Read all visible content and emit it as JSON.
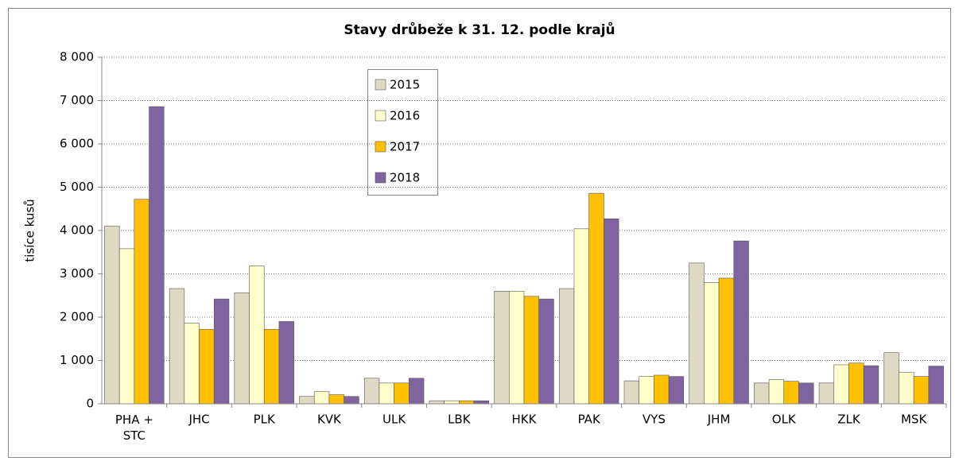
{
  "chart_data": {
    "type": "bar",
    "title": "Stavy drůbeže k 31. 12. podle krajů",
    "y_label": "tisíce kusů",
    "categories": [
      "PHA + STC",
      "JHC",
      "PLK",
      "KVK",
      "ULK",
      "LBK",
      "HKK",
      "PAK",
      "VYS",
      "JHM",
      "OLK",
      "ZLK",
      "MSK"
    ],
    "series": [
      {
        "name": "2015",
        "color": "#ddd9c3",
        "values": [
          4100,
          2660,
          2560,
          170,
          590,
          70,
          2600,
          2660,
          530,
          3250,
          480,
          480,
          1180
        ]
      },
      {
        "name": "2016",
        "color": "#ffffcc",
        "values": [
          3580,
          1860,
          3180,
          280,
          480,
          70,
          2600,
          4040,
          630,
          2800,
          560,
          900,
          730
        ]
      },
      {
        "name": "2017",
        "color": "#ffc000",
        "values": [
          4720,
          1720,
          1720,
          210,
          480,
          70,
          2480,
          4860,
          660,
          2900,
          520,
          940,
          630
        ]
      },
      {
        "name": "2018",
        "color": "#8064a2",
        "values": [
          6860,
          2420,
          1900,
          170,
          590,
          70,
          2420,
          4270,
          630,
          3760,
          480,
          880,
          870
        ]
      }
    ],
    "ylim": [
      0,
      8000
    ],
    "yticks": [
      0,
      {
        "value": 1000,
        "label": "1 000"
      },
      {
        "value": 2000,
        "label": "2 000"
      },
      {
        "value": 3000,
        "label": "3 000"
      },
      {
        "value": 4000,
        "label": "4 000"
      },
      {
        "value": 5000,
        "label": "5 000"
      },
      {
        "value": 6000,
        "label": "6 000"
      },
      {
        "value": 7000,
        "label": "7 000"
      },
      {
        "value": 8000,
        "label": "8 000"
      }
    ],
    "grid": true
  }
}
